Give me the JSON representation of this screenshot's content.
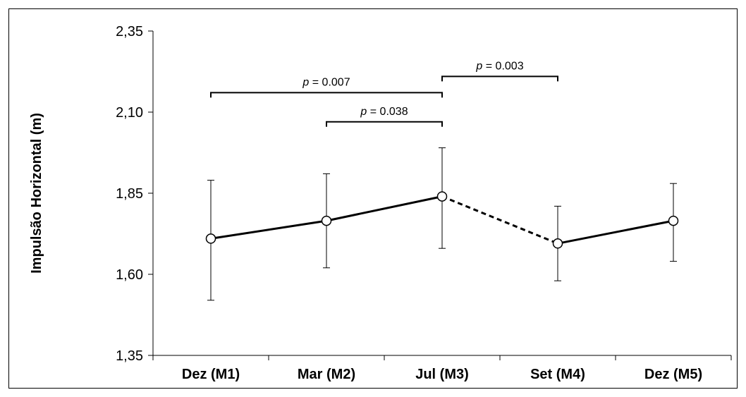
{
  "chart_data": {
    "type": "line",
    "title": "",
    "xlabel": "",
    "ylabel": "Impulsão Horizontal (m)",
    "ylim": [
      1.35,
      2.35
    ],
    "yticks": [
      "1,35",
      "1,60",
      "1,85",
      "2,10",
      "2,35"
    ],
    "ytick_values": [
      1.35,
      1.6,
      1.85,
      2.1,
      2.35
    ],
    "categories": [
      "Dez (M1)",
      "Mar (M2)",
      "Jul (M3)",
      "Set (M4)",
      "Dez (M5)"
    ],
    "series": [
      {
        "values": [
          1.71,
          1.765,
          1.84,
          1.695,
          1.765
        ],
        "error_low": [
          1.52,
          1.62,
          1.68,
          1.58,
          1.64
        ],
        "error_high": [
          1.89,
          1.91,
          1.99,
          1.81,
          1.88
        ],
        "segment_styles": [
          "solid",
          "solid",
          "dashed",
          "solid"
        ]
      }
    ],
    "annotations": [
      {
        "from": 0,
        "to": 2,
        "y": 2.16,
        "p_label": "p",
        "p_value": " = 0.007"
      },
      {
        "from": 1,
        "to": 2,
        "y": 2.07,
        "p_label": "p",
        "p_value": " = 0.038"
      },
      {
        "from": 2,
        "to": 3,
        "y": 2.21,
        "p_label": "p",
        "p_value": " = 0.003"
      }
    ],
    "grid": false,
    "legend": "none"
  }
}
